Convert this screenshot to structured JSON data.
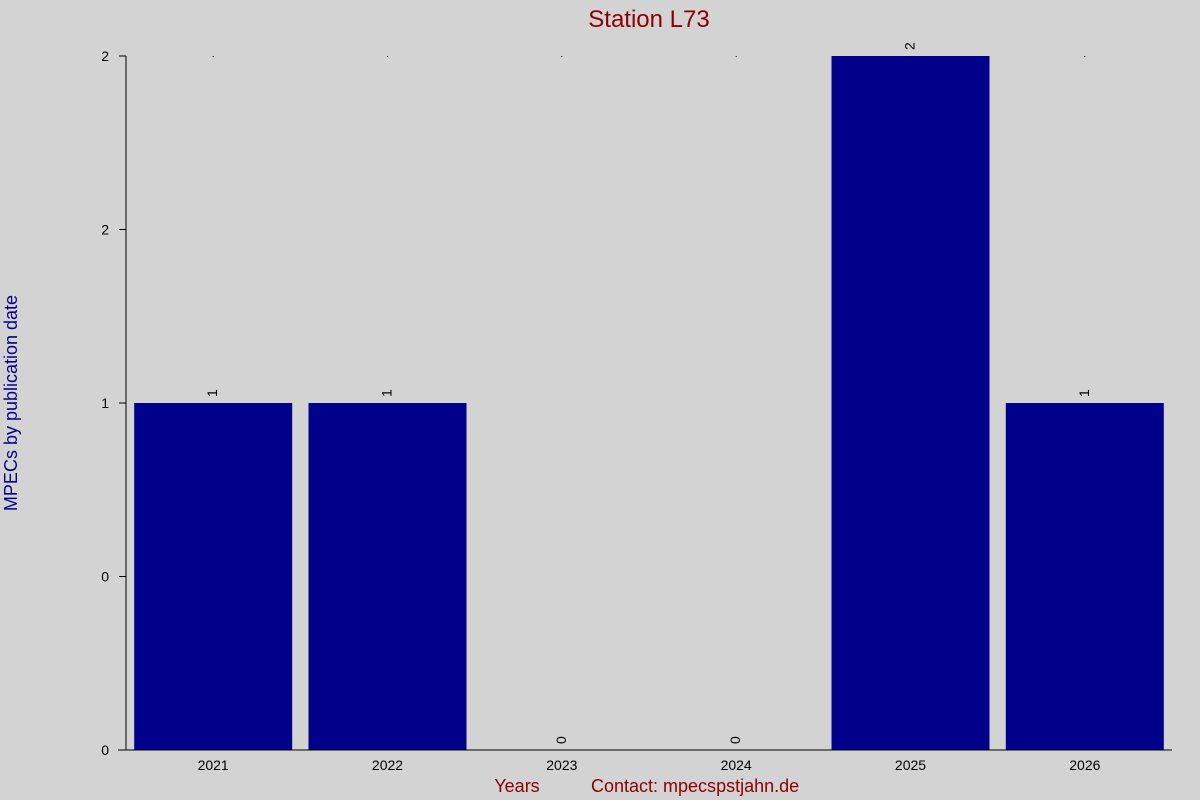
{
  "colors": {
    "background": "#d3d3d3",
    "bar": "#00008b",
    "title": "#8b0000",
    "ylabel": "#00008b",
    "footer": "#8b0000",
    "axis": "#000000"
  },
  "footer": {
    "xlabel": "Years",
    "contact": "Contact: mpecs",
    "contact_suffix": "pstjahn.de"
  },
  "chart_data": {
    "type": "bar",
    "title": "Station L73",
    "ylabel": "MPECs by publication date",
    "xlabel": "Years",
    "categories": [
      "2021",
      "2022",
      "2023",
      "2024",
      "2025",
      "2026"
    ],
    "values": [
      1,
      1,
      0,
      0,
      2,
      1
    ],
    "data_labels": [
      "1",
      "1",
      "0",
      "0",
      "2",
      "1"
    ],
    "ylim": [
      0,
      2
    ],
    "yticks": [
      0,
      0.5,
      1,
      1.5,
      2
    ],
    "ytick_labels": [
      "0",
      "0",
      "1",
      "2",
      "2"
    ],
    "grid": false,
    "legend": "none"
  }
}
